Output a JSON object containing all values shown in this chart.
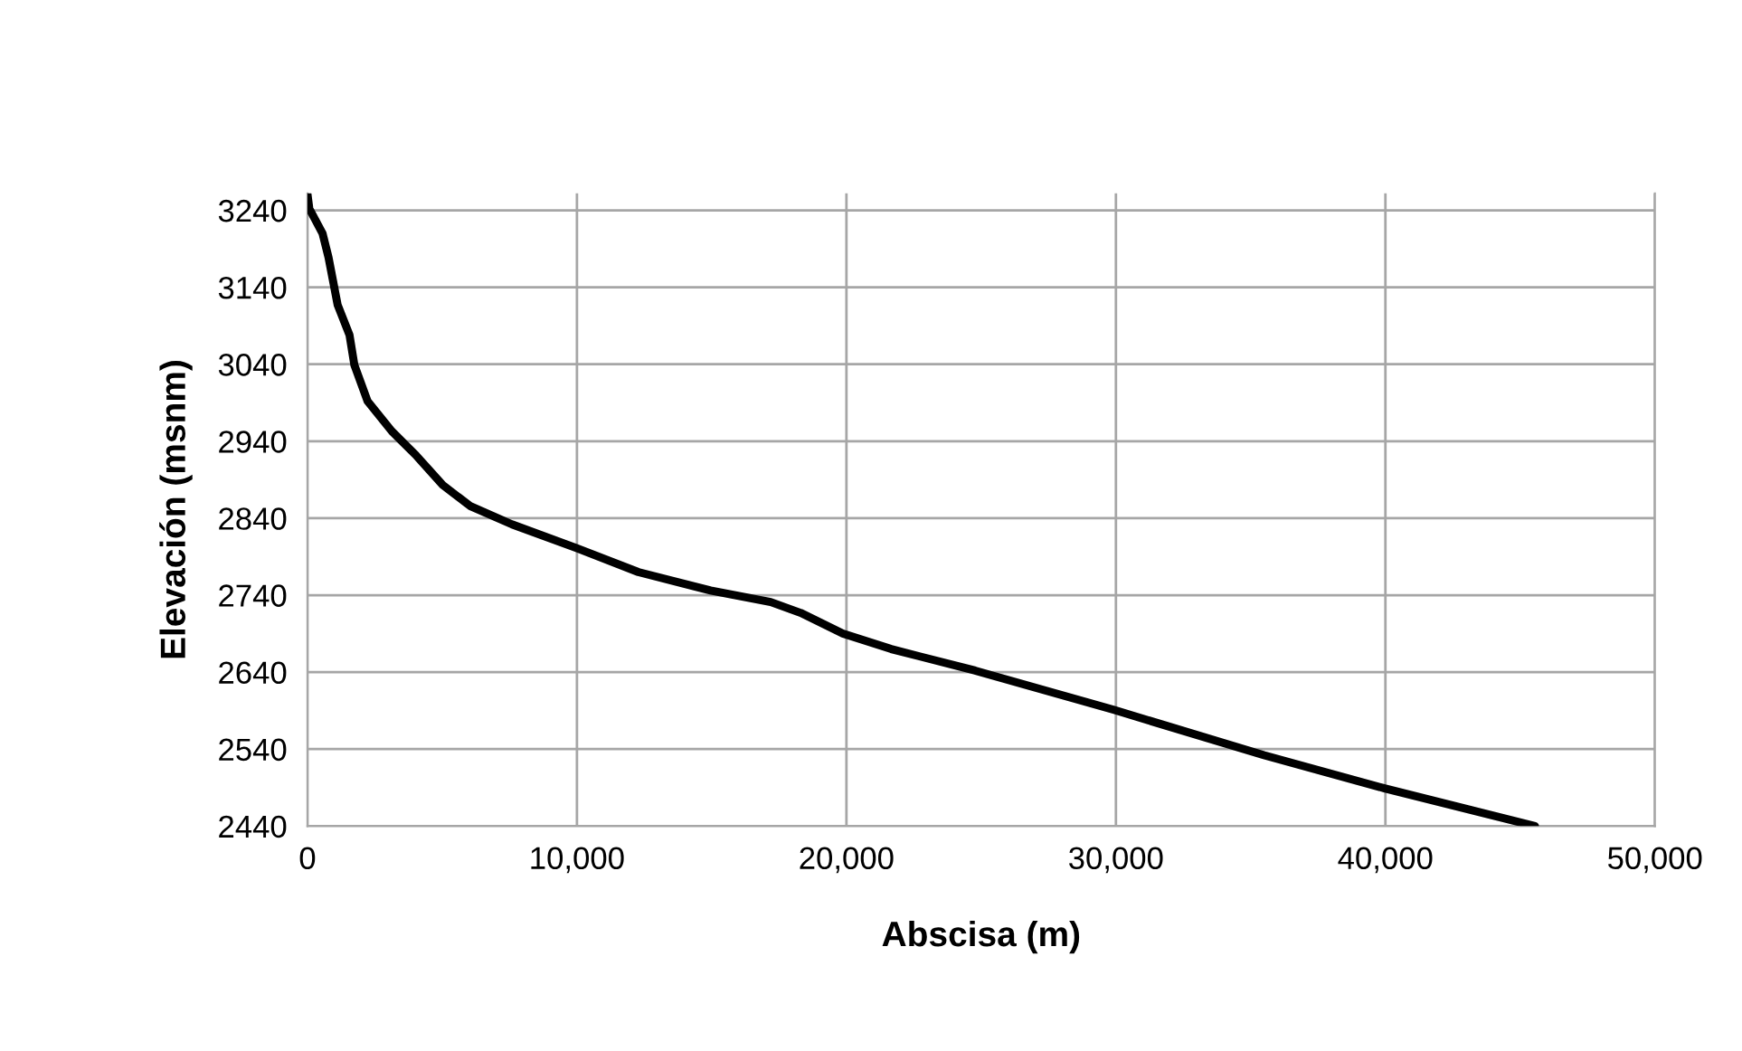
{
  "chart_data": {
    "type": "line",
    "xlabel": "Abscisa (m)",
    "ylabel": "Elevación (msnm)",
    "xlim": [
      0,
      50000
    ],
    "ylim": [
      2440,
      3262
    ],
    "xticks": [
      0,
      {
        "value": 10000,
        "label": "10,000"
      },
      {
        "value": 20000,
        "label": "20,000"
      },
      {
        "value": 30000,
        "label": "30,000"
      },
      {
        "value": 40000,
        "label": "40,000"
      },
      {
        "value": 50000,
        "label": "50,000"
      }
    ],
    "yticks": [
      2440,
      2540,
      2640,
      2740,
      2840,
      2940,
      3040,
      3140,
      3240
    ],
    "grid": true,
    "legend": false,
    "marker": "none",
    "line_style": "solid",
    "series": [
      {
        "color": "#000000",
        "x": [
          0,
          70,
          560,
          780,
          1120,
          1560,
          1740,
          2230,
          3130,
          4020,
          5020,
          6030,
          7590,
          10000,
          12280,
          14960,
          17190,
          18300,
          19870,
          21660,
          24780,
          29920,
          35500,
          39970,
          45550
        ],
        "values": [
          3261,
          3242,
          3210,
          3179,
          3117,
          3078,
          3039,
          2992,
          2953,
          2922,
          2883,
          2856,
          2832,
          2801,
          2770,
          2746,
          2731,
          2717,
          2690,
          2670,
          2642,
          2591,
          2532,
          2489,
          2440
        ]
      }
    ]
  }
}
